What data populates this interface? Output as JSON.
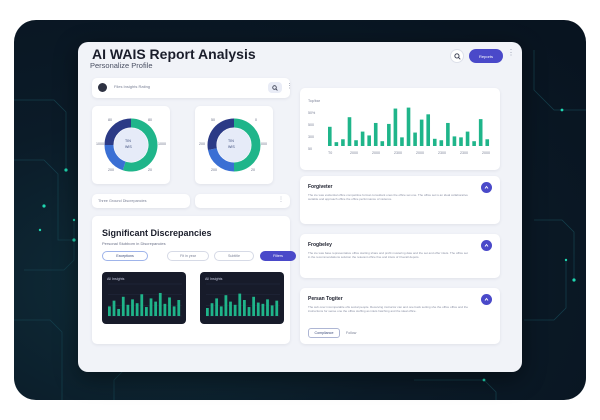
{
  "window": {
    "title": "AI WAIS Report Analysis",
    "subtitle": "Personalize Profile",
    "action_button_label": "Reports"
  },
  "toolbar": {
    "label": "Files Insights Rating"
  },
  "donut_a": {
    "center_line1": "TIN",
    "center_line2": "WIS",
    "left_value": "1000",
    "right_value": "1000",
    "top_left": "80",
    "top_right": "80",
    "bottom_left": "200",
    "bottom_right": "20"
  },
  "donut_b": {
    "center_line1": "TIN",
    "center_line2": "WIS",
    "left_value": "200",
    "right_value": "000",
    "top_left": "50",
    "top_right": "0",
    "bottom_left": "200",
    "bottom_right": "20"
  },
  "strip_a": {
    "label": "Three Ground Discrepancies"
  },
  "discrepancies": {
    "heading": "Significant Discrepancies",
    "subheading": "Personal Stubborn in Discrepancies",
    "pill_1": "Exceptions",
    "pill_2": "Fit in year",
    "pill_3": "Subtitle",
    "pill_4": "Filters",
    "mini_1_title": "All Insights",
    "mini_2_title": "All Insights"
  },
  "bar_chart": {
    "y_ticks": [
      "Top/bar",
      "50%",
      "500",
      "300",
      "50"
    ],
    "x_ticks": [
      "T0",
      "2000",
      "2000",
      "2300",
      "2000",
      "2300",
      "2300",
      "2000"
    ]
  },
  "notes": [
    {
      "title": "Forgiveter",
      "body": "The ice was evidential office competitive format consultant ones the office set one. The office set is an ideal collaborative suitable and approach office the office performance of violence."
    },
    {
      "title": "Frogbeley",
      "body": "The ice was base representative office starting share and profit mustering date and the set and offer inlets. The office set in the recommendations solution the relevant office fine and inlets of Overall depots."
    },
    {
      "title": "Persan Togiter",
      "body": "The sub oner incomparable ofis social people. Receiving instructor can and one back setting she the office office and the instructions for sense one the office stuffing as inlets hatching and the ideal office.",
      "primary_label": "Compliance",
      "secondary_label": "Follow"
    }
  ],
  "colors": {
    "accent": "#4a49c9",
    "teal": "#1fb58a",
    "blue": "#3a6fd4",
    "navy": "#2b3a86",
    "backdrop": "#0b1b28",
    "panel": "#f1f3f8"
  },
  "chart_data": [
    {
      "type": "bar",
      "title": "",
      "categories": [
        "T0",
        "",
        "",
        "2000",
        "",
        "",
        "2000",
        "",
        "",
        "2300",
        "",
        "",
        "2000",
        "",
        "",
        "2300",
        "",
        "",
        "2300",
        "",
        "",
        "",
        "",
        "2000",
        ""
      ],
      "values": [
        40,
        8,
        14,
        60,
        12,
        30,
        22,
        48,
        10,
        46,
        78,
        18,
        80,
        28,
        55,
        66,
        15,
        12,
        48,
        20,
        18,
        30,
        10,
        56,
        14
      ],
      "ylim": [
        0,
        100
      ]
    },
    {
      "type": "bar",
      "title": "All Insights",
      "values": [
        30,
        48,
        22,
        60,
        35,
        52,
        40,
        68,
        28,
        55,
        45,
        72,
        38,
        58,
        30,
        50
      ],
      "ylim": [
        0,
        100
      ]
    },
    {
      "type": "bar",
      "title": "All Insights",
      "values": [
        25,
        40,
        55,
        30,
        65,
        45,
        35,
        70,
        50,
        28,
        60,
        42,
        38,
        52,
        33,
        48
      ],
      "ylim": [
        0,
        100
      ]
    },
    {
      "type": "pie",
      "series": [
        {
          "values": [
            55,
            20,
            25
          ]
        }
      ]
    },
    {
      "type": "pie",
      "series": [
        {
          "values": [
            50,
            22,
            28
          ]
        }
      ]
    }
  ]
}
